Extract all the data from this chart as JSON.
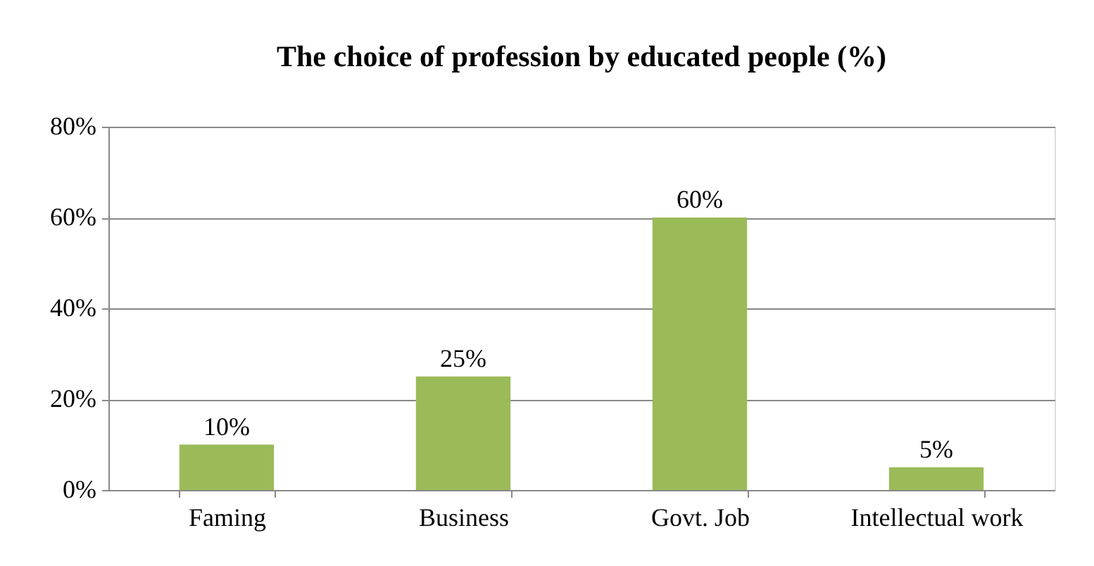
{
  "chart_data": {
    "type": "bar",
    "title": "The choice of profession by educated people (%)",
    "categories": [
      "Faming",
      "Business",
      "Govt. Job",
      "Intellectual work"
    ],
    "values": [
      10,
      25,
      60,
      5
    ],
    "value_labels": [
      "10%",
      "25%",
      "60%",
      "5%"
    ],
    "color": "#9bbb59",
    "ylim": [
      0,
      80
    ],
    "yticks": [
      {
        "value": 0,
        "label": "0%"
      },
      {
        "value": 20,
        "label": "20%"
      },
      {
        "value": 40,
        "label": "40%"
      },
      {
        "value": 60,
        "label": "60%"
      },
      {
        "value": 80,
        "label": "80%"
      }
    ],
    "grid": "y"
  }
}
